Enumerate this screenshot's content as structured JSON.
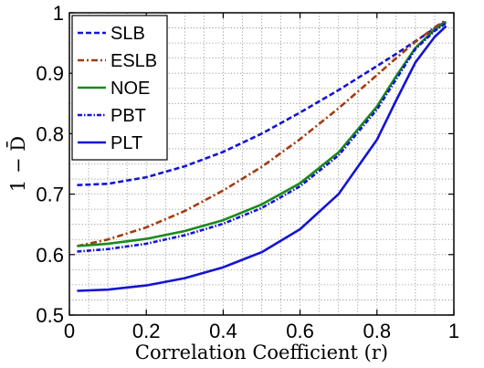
{
  "chart_data": {
    "type": "line",
    "title": "",
    "xlabel": "Correlation Coefficient (r)",
    "ylabel": "1 − D̄",
    "xlim": [
      0,
      1
    ],
    "ylim": [
      0.5,
      1
    ],
    "xticks": [
      {
        "value": 0,
        "label": "0"
      },
      {
        "value": 0.2,
        "label": "0.2"
      },
      {
        "value": 0.4,
        "label": "0.4"
      },
      {
        "value": 0.6,
        "label": "0.6"
      },
      {
        "value": 0.8,
        "label": "0.8"
      },
      {
        "value": 1,
        "label": "1"
      }
    ],
    "yticks": [
      {
        "value": 0.5,
        "label": "0.5"
      },
      {
        "value": 0.6,
        "label": "0.6"
      },
      {
        "value": 0.7,
        "label": "0.7"
      },
      {
        "value": 0.8,
        "label": "0.8"
      },
      {
        "value": 0.9,
        "label": "0.9"
      },
      {
        "value": 1,
        "label": "1"
      }
    ],
    "grid": true,
    "legend_position": "top-left",
    "x": [
      0.02,
      0.1,
      0.2,
      0.3,
      0.4,
      0.5,
      0.6,
      0.7,
      0.8,
      0.85,
      0.9,
      0.95,
      0.98
    ],
    "series": [
      {
        "name": "SLB",
        "color": "#1414d4",
        "dash": "dashed",
        "values": [
          0.715,
          0.717,
          0.728,
          0.746,
          0.77,
          0.8,
          0.835,
          0.872,
          0.912,
          0.932,
          0.953,
          0.974,
          0.986
        ]
      },
      {
        "name": "ESLB",
        "color": "#a33b10",
        "dash": "dashdot",
        "values": [
          0.614,
          0.625,
          0.645,
          0.672,
          0.706,
          0.745,
          0.791,
          0.842,
          0.897,
          0.925,
          0.952,
          0.976,
          0.988
        ]
      },
      {
        "name": "NOE",
        "color": "#1a8a1a",
        "dash": "solid",
        "values": [
          0.614,
          0.618,
          0.626,
          0.639,
          0.657,
          0.683,
          0.718,
          0.769,
          0.845,
          0.895,
          0.942,
          0.972,
          0.985
        ]
      },
      {
        "name": "PBT",
        "color": "#1414d4",
        "dash": "dashdotfine",
        "values": [
          0.605,
          0.609,
          0.618,
          0.632,
          0.651,
          0.677,
          0.713,
          0.764,
          0.84,
          0.89,
          0.94,
          0.97,
          0.983
        ]
      },
      {
        "name": "PLT",
        "color": "#1414d4",
        "dash": "solid",
        "values": [
          0.54,
          0.542,
          0.549,
          0.561,
          0.579,
          0.604,
          0.642,
          0.7,
          0.79,
          0.855,
          0.918,
          0.96,
          0.978
        ]
      }
    ]
  }
}
